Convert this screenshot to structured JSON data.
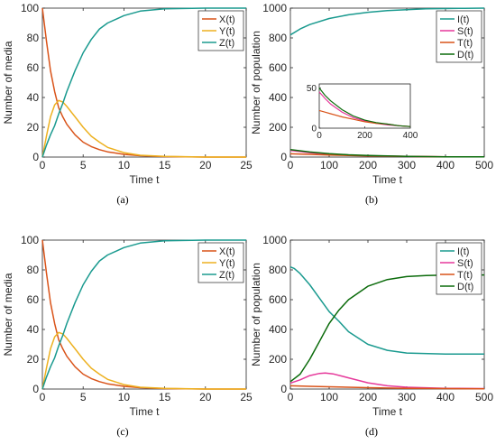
{
  "chart_data": [
    {
      "panel": "(a)",
      "type": "line",
      "xlabel": "Time t",
      "ylabel": "Number of media",
      "xlim": [
        0,
        25
      ],
      "ylim": [
        0,
        100
      ],
      "xticks": [
        0,
        5,
        10,
        15,
        20,
        25
      ],
      "yticks": [
        0,
        20,
        40,
        60,
        80,
        100
      ],
      "legend_position": "top-right",
      "series": [
        {
          "name": "X(t)",
          "color": "#D95319",
          "x": [
            0,
            0.5,
            1,
            1.5,
            2,
            2.5,
            3,
            4,
            5,
            6,
            7,
            8,
            10,
            12,
            15,
            20,
            25
          ],
          "y": [
            100,
            78,
            58,
            44,
            33,
            27,
            22,
            15,
            10,
            7,
            5,
            3.5,
            1.8,
            0.9,
            0.3,
            0,
            0
          ]
        },
        {
          "name": "Y(t)",
          "color": "#EDB120",
          "x": [
            0,
            0.5,
            1,
            1.5,
            2,
            2.5,
            3,
            4,
            5,
            6,
            7,
            8,
            10,
            12,
            15,
            20,
            25
          ],
          "y": [
            0,
            14,
            27,
            35,
            38,
            37,
            34,
            27,
            20,
            14,
            10,
            6.5,
            3,
            1.2,
            0.4,
            0,
            0
          ]
        },
        {
          "name": "Z(t)",
          "color": "#1A9A8F",
          "x": [
            0,
            0.5,
            1,
            1.5,
            2,
            2.5,
            3,
            4,
            5,
            6,
            7,
            8,
            10,
            12,
            15,
            20,
            25
          ],
          "y": [
            0,
            8,
            15,
            21,
            29,
            36,
            44,
            58,
            70,
            79,
            86,
            90,
            95,
            98,
            99.5,
            100,
            100
          ]
        }
      ]
    },
    {
      "panel": "(b)",
      "type": "line",
      "xlabel": "Time t",
      "ylabel": "Number of population",
      "xlim": [
        0,
        500
      ],
      "ylim": [
        0,
        1000
      ],
      "xticks": [
        0,
        100,
        200,
        300,
        400,
        500
      ],
      "yticks": [
        0,
        200,
        400,
        600,
        800,
        1000
      ],
      "legend_position": "top-right",
      "series": [
        {
          "name": "I(t)",
          "color": "#1A9A8F",
          "x": [
            0,
            25,
            50,
            100,
            150,
            200,
            250,
            300,
            350,
            400,
            450,
            500
          ],
          "y": [
            820,
            860,
            890,
            930,
            955,
            972,
            983,
            990,
            995,
            997,
            999,
            1000
          ]
        },
        {
          "name": "S(t)",
          "color": "#E6399B",
          "x": [
            0,
            50,
            100,
            150,
            200,
            250,
            300,
            350,
            400,
            450,
            500
          ],
          "y": [
            45,
            30,
            20,
            13,
            9,
            6,
            4,
            3,
            2,
            1,
            1
          ]
        },
        {
          "name": "T(t)",
          "color": "#D95319",
          "x": [
            0,
            50,
            100,
            150,
            200,
            250,
            300,
            350,
            400,
            450,
            500
          ],
          "y": [
            22,
            18,
            14,
            11,
            8,
            6,
            5,
            3,
            2,
            2,
            1
          ]
        },
        {
          "name": "D(t)",
          "color": "#0B6B0B",
          "x": [
            0,
            50,
            100,
            150,
            200,
            250,
            300,
            350,
            400,
            450,
            500
          ],
          "y": [
            50,
            34,
            23,
            15,
            10,
            7,
            5,
            3,
            2,
            1,
            1
          ]
        }
      ],
      "inset": {
        "xlim": [
          0,
          400
        ],
        "ylim": [
          0,
          55
        ],
        "xticks": [
          0,
          200,
          400
        ],
        "yticks": [
          0,
          50
        ],
        "series": [
          {
            "name": "S(t)",
            "color": "#E6399B",
            "x": [
              0,
              25,
              50,
              100,
              150,
              200,
              250,
              300,
              350,
              400
            ],
            "y": [
              45,
              37,
              30,
              20,
              13,
              9,
              6,
              4,
              3,
              2
            ]
          },
          {
            "name": "T(t)",
            "color": "#D95319",
            "x": [
              0,
              25,
              50,
              100,
              150,
              200,
              250,
              300,
              350,
              400
            ],
            "y": [
              22,
              20,
              18,
              14,
              11,
              8,
              6,
              5,
              3,
              2
            ]
          },
          {
            "name": "D(t)",
            "color": "#0B6B0B",
            "x": [
              0,
              25,
              50,
              100,
              150,
              200,
              250,
              300,
              350,
              400
            ],
            "y": [
              50,
              41,
              34,
              23,
              15,
              10,
              7,
              5,
              3,
              2
            ]
          }
        ]
      }
    },
    {
      "panel": "(c)",
      "type": "line",
      "xlabel": "Time t",
      "ylabel": "Number of media",
      "xlim": [
        0,
        25
      ],
      "ylim": [
        0,
        100
      ],
      "xticks": [
        0,
        5,
        10,
        15,
        20,
        25
      ],
      "yticks": [
        0,
        20,
        40,
        60,
        80,
        100
      ],
      "legend_position": "top-right",
      "series": [
        {
          "name": "X(t)",
          "color": "#D95319",
          "x": [
            0,
            0.5,
            1,
            1.5,
            2,
            2.5,
            3,
            4,
            5,
            6,
            7,
            8,
            10,
            12,
            15,
            20,
            25
          ],
          "y": [
            100,
            78,
            58,
            44,
            33,
            27,
            22,
            15,
            10,
            7,
            5,
            3.5,
            1.8,
            0.9,
            0.3,
            0,
            0
          ]
        },
        {
          "name": "Y(t)",
          "color": "#EDB120",
          "x": [
            0,
            0.5,
            1,
            1.5,
            2,
            2.5,
            3,
            4,
            5,
            6,
            7,
            8,
            10,
            12,
            15,
            20,
            25
          ],
          "y": [
            0,
            14,
            27,
            35,
            38,
            37,
            34,
            27,
            20,
            14,
            10,
            6.5,
            3,
            1.2,
            0.4,
            0,
            0
          ]
        },
        {
          "name": "Z(t)",
          "color": "#1A9A8F",
          "x": [
            0,
            0.5,
            1,
            1.5,
            2,
            2.5,
            3,
            4,
            5,
            6,
            7,
            8,
            10,
            12,
            15,
            20,
            25
          ],
          "y": [
            0,
            8,
            15,
            21,
            29,
            36,
            44,
            58,
            70,
            79,
            86,
            90,
            95,
            98,
            99.5,
            100,
            100
          ]
        }
      ]
    },
    {
      "panel": "(d)",
      "type": "line",
      "xlabel": "Time t",
      "ylabel": "Number of population",
      "xlim": [
        0,
        500
      ],
      "ylim": [
        0,
        1000
      ],
      "xticks": [
        0,
        100,
        200,
        300,
        400,
        500
      ],
      "yticks": [
        0,
        200,
        400,
        600,
        800,
        1000
      ],
      "legend_position": "top-right",
      "series": [
        {
          "name": "I(t)",
          "color": "#1A9A8F",
          "x": [
            0,
            10,
            25,
            50,
            75,
            100,
            125,
            150,
            200,
            250,
            300,
            400,
            500
          ],
          "y": [
            820,
            810,
            775,
            700,
            610,
            520,
            455,
            385,
            300,
            260,
            242,
            235,
            235
          ]
        },
        {
          "name": "S(t)",
          "color": "#E6399B",
          "x": [
            0,
            25,
            50,
            75,
            90,
            110,
            150,
            200,
            250,
            300,
            400,
            500
          ],
          "y": [
            40,
            62,
            90,
            105,
            108,
            102,
            75,
            42,
            22,
            12,
            5,
            3
          ]
        },
        {
          "name": "T(t)",
          "color": "#D95319",
          "x": [
            0,
            50,
            100,
            200,
            300,
            400,
            500
          ],
          "y": [
            22,
            18,
            15,
            9,
            5,
            3,
            2
          ]
        },
        {
          "name": "D(t)",
          "color": "#0B6B0B",
          "x": [
            0,
            25,
            50,
            75,
            100,
            125,
            150,
            200,
            250,
            300,
            350,
            400,
            450,
            500
          ],
          "y": [
            50,
            100,
            200,
            320,
            440,
            530,
            600,
            690,
            735,
            755,
            762,
            765,
            766,
            766
          ]
        }
      ]
    }
  ]
}
